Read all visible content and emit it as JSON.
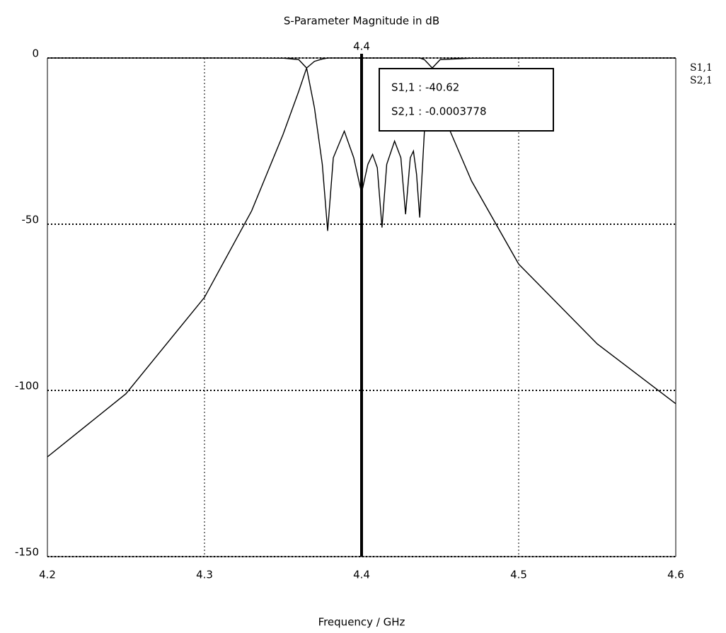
{
  "chart_data": {
    "type": "line",
    "title": "S-Parameter Magnitude in dB",
    "x_label": "Frequency / GHz",
    "x": [
      4.2,
      4.25,
      4.3,
      4.33,
      4.35,
      4.36,
      4.365,
      4.37,
      4.375,
      4.3784,
      4.382,
      4.389,
      4.395,
      4.4,
      4.404,
      4.407,
      4.41,
      4.413,
      4.416,
      4.421,
      4.425,
      4.428,
      4.431,
      4.433,
      4.435,
      4.437,
      4.44,
      4.445,
      4.45,
      4.47,
      4.5,
      4.55,
      4.6
    ],
    "series": [
      {
        "name": "S1,1",
        "color": "#000000",
        "values": [
          0,
          0,
          0,
          -0.01,
          -0.05,
          -0.5,
          -3,
          -15,
          -32,
          -52,
          -30,
          -22,
          -30,
          -40.62,
          -32,
          -29,
          -33,
          -51,
          -32,
          -25,
          -30,
          -47,
          -30,
          -28,
          -35,
          -48,
          -22,
          -3,
          -0.5,
          -0.05,
          0,
          0,
          0
        ]
      },
      {
        "name": "S2,1",
        "color": "#000000",
        "legend_color": "#9a9a9a",
        "values": [
          -120,
          -101,
          -72,
          -46,
          -23,
          -10,
          -3,
          -1,
          -0.3,
          0,
          0,
          0,
          0,
          0,
          0,
          0,
          0,
          0,
          0,
          0,
          0,
          0,
          0,
          0,
          0,
          0,
          -0.5,
          -3,
          -15,
          -37,
          -62,
          -86,
          -104
        ]
      }
    ],
    "xlim": [
      4.2,
      4.6
    ],
    "ylim": [
      -150,
      0
    ],
    "xticks": [
      4.2,
      4.3,
      4.4,
      4.5,
      4.6
    ],
    "yticks": [
      0,
      -50,
      -100,
      -150
    ],
    "grid": true,
    "marker": {
      "x": 4.4,
      "readouts": [
        "S1,1 : -40.62",
        "S2,1 : -0.0003778"
      ]
    }
  }
}
